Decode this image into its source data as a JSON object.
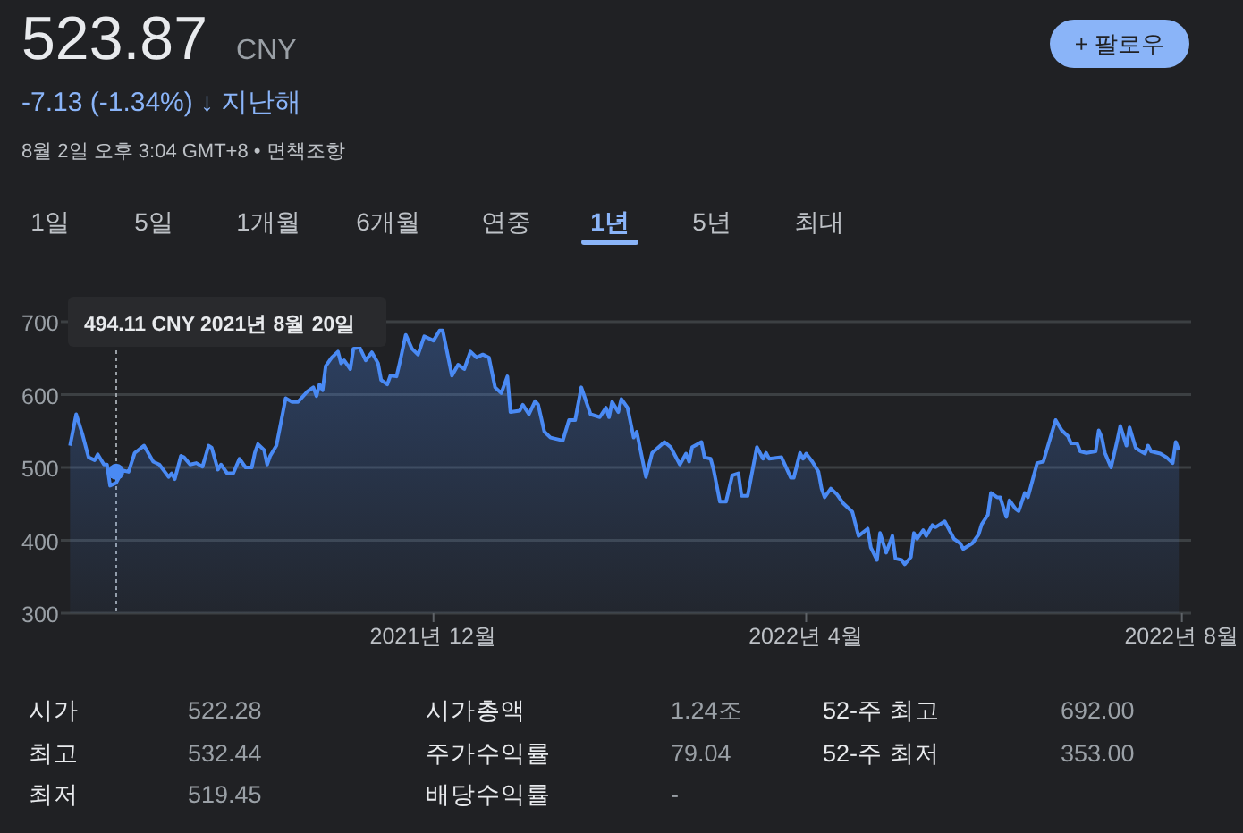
{
  "chart_data": {
    "type": "area",
    "title": "523.87",
    "subtitle": "CNY",
    "x": [
      "2021-08-05",
      "2021-08-07",
      "2021-08-09",
      "2021-08-11",
      "2021-08-13",
      "2021-08-14",
      "2021-08-16",
      "2021-08-17",
      "2021-08-18",
      "2021-08-20",
      "2021-08-22",
      "2021-08-24",
      "2021-08-26",
      "2021-08-29",
      "2021-09-01",
      "2021-09-03",
      "2021-09-06",
      "2021-09-07",
      "2021-09-08",
      "2021-09-10",
      "2021-09-11",
      "2021-09-13",
      "2021-09-15",
      "2021-09-17",
      "2021-09-19",
      "2021-09-20",
      "2021-09-22",
      "2021-09-23",
      "2021-09-25",
      "2021-09-27",
      "2021-09-29",
      "2021-10-01",
      "2021-10-03",
      "2021-10-04",
      "2021-10-05",
      "2021-10-07",
      "2021-10-08",
      "2021-10-09",
      "2021-10-11",
      "2021-10-14",
      "2021-10-16",
      "2021-10-18",
      "2021-10-21",
      "2021-10-23",
      "2021-10-24",
      "2021-10-25",
      "2021-10-26",
      "2021-10-27",
      "2021-10-29",
      "2021-10-31",
      "2021-11-01",
      "2021-11-02",
      "2021-11-04",
      "2021-11-05",
      "2021-11-07",
      "2021-11-09",
      "2021-11-11",
      "2021-11-13",
      "2021-11-14",
      "2021-11-16",
      "2021-11-17",
      "2021-11-19",
      "2021-11-20",
      "2021-11-22",
      "2021-11-24",
      "2021-11-26",
      "2021-11-28",
      "2021-12-01",
      "2021-12-03",
      "2021-12-04",
      "2021-12-07",
      "2021-12-09",
      "2021-12-11",
      "2021-12-13",
      "2021-12-15",
      "2021-12-17",
      "2021-12-19",
      "2021-12-21",
      "2021-12-23",
      "2021-12-25",
      "2021-12-26",
      "2021-12-29",
      "2021-12-30",
      "2022-01-01",
      "2022-01-03",
      "2022-01-04",
      "2022-01-06",
      "2022-01-08",
      "2022-01-12",
      "2022-01-14",
      "2022-01-16",
      "2022-01-18",
      "2022-01-21",
      "2022-01-24",
      "2022-01-26",
      "2022-01-27",
      "2022-01-28",
      "2022-01-30",
      "2022-01-31",
      "2022-02-02",
      "2022-02-04",
      "2022-02-05",
      "2022-02-08",
      "2022-02-10",
      "2022-02-14",
      "2022-02-16",
      "2022-02-19",
      "2022-02-21",
      "2022-02-22",
      "2022-02-23",
      "2022-02-26",
      "2022-02-27",
      "2022-03-01",
      "2022-03-02",
      "2022-03-04",
      "2022-03-06",
      "2022-03-08",
      "2022-03-10",
      "2022-03-11",
      "2022-03-13",
      "2022-03-16",
      "2022-03-18",
      "2022-03-19",
      "2022-03-20",
      "2022-03-24",
      "2022-03-27",
      "2022-03-28",
      "2022-03-30",
      "2022-03-31",
      "2022-04-01",
      "2022-04-03",
      "2022-04-05",
      "2022-04-06",
      "2022-04-07",
      "2022-04-09",
      "2022-04-11",
      "2022-04-13",
      "2022-04-16",
      "2022-04-18",
      "2022-04-21",
      "2022-04-22",
      "2022-04-24",
      "2022-04-25",
      "2022-04-27",
      "2022-04-29",
      "2022-04-30",
      "2022-05-02",
      "2022-05-03",
      "2022-05-05",
      "2022-05-06",
      "2022-05-07",
      "2022-05-09",
      "2022-05-10",
      "2022-05-12",
      "2022-05-13",
      "2022-05-16",
      "2022-05-19",
      "2022-05-21",
      "2022-05-22",
      "2022-05-25",
      "2022-05-27",
      "2022-05-28",
      "2022-05-30",
      "2022-05-31",
      "2022-06-02",
      "2022-06-03",
      "2022-06-05",
      "2022-06-06",
      "2022-06-08",
      "2022-06-09",
      "2022-06-11",
      "2022-06-12",
      "2022-06-15",
      "2022-06-17",
      "2022-06-21",
      "2022-06-23",
      "2022-06-25",
      "2022-06-26",
      "2022-06-28",
      "2022-06-29",
      "2022-07-01",
      "2022-07-04",
      "2022-07-05",
      "2022-07-06",
      "2022-07-07",
      "2022-07-09",
      "2022-07-11",
      "2022-07-12",
      "2022-07-14",
      "2022-07-15",
      "2022-07-17",
      "2022-07-18",
      "2022-07-20",
      "2022-07-21",
      "2022-07-22",
      "2022-07-25",
      "2022-07-27",
      "2022-07-29",
      "2022-07-30",
      "2022-07-31"
    ],
    "series": [
      {
        "color": "#4a8af4",
        "values": [
          530,
          573,
          546,
          514,
          510,
          518,
          504,
          504,
          475,
          479,
          496,
          494,
          520,
          530,
          508,
          504,
          487,
          492,
          484,
          516,
          514,
          504,
          506,
          501,
          530,
          527,
          497,
          504,
          492,
          492,
          512,
          500,
          500,
          520,
          532,
          524,
          504,
          516,
          530,
          595,
          590,
          590,
          604,
          610,
          598,
          614,
          606,
          639,
          651,
          659,
          643,
          647,
          635,
          663,
          665,
          647,
          658,
          643,
          620,
          614,
          626,
          625,
          643,
          682,
          663,
          655,
          680,
          674,
          688,
          688,
          626,
          641,
          635,
          659,
          651,
          655,
          651,
          610,
          602,
          625,
          576,
          578,
          586,
          573,
          591,
          586,
          549,
          541,
          537,
          565,
          565,
          610,
          573,
          569,
          582,
          569,
          590,
          576,
          594,
          582,
          541,
          549,
          487,
          520,
          535,
          528,
          504,
          519,
          508,
          528,
          535,
          514,
          512,
          496,
          453,
          453,
          489,
          492,
          461,
          461,
          528,
          512,
          520,
          512,
          514,
          486,
          486,
          520,
          512,
          519,
          508,
          494,
          471,
          459,
          471,
          463,
          451,
          439,
          406,
          416,
          390,
          373,
          410,
          383,
          406,
          375,
          373,
          367,
          377,
          410,
          402,
          414,
          406,
          421,
          418,
          426,
          402,
          396,
          388,
          396,
          408,
          422,
          435,
          465,
          459,
          459,
          432,
          455,
          443,
          440,
          465,
          459,
          506,
          508,
          565,
          551,
          543,
          533,
          533,
          522,
          520,
          522,
          551,
          541,
          520,
          500,
          537,
          557,
          530,
          555,
          527,
          524,
          519,
          530,
          522,
          519,
          514,
          506,
          535,
          524
        ]
      },
      {
        "type": "scatter",
        "marker": "circle",
        "color": "#4a8af4",
        "x": [
          "2021-08-20"
        ],
        "values": [
          494.11
        ]
      }
    ],
    "xlim": [
      "2021-08-02",
      "2022-08-04"
    ],
    "xticks": [
      {
        "value": "2021-12-01",
        "label": "2021년 12월"
      },
      {
        "value": "2022-04-01",
        "label": "2022년 4월"
      },
      {
        "value": "2022-08-01",
        "label": "2022년 8월"
      }
    ],
    "ylim": [
      300,
      700
    ],
    "yticks": [
      300,
      400,
      500,
      600,
      700
    ],
    "grid": "y",
    "ref_lines": [
      {
        "axis": "x",
        "value": "2021-08-20",
        "color": "#9aa0a6",
        "line_style": "dotted"
      }
    ],
    "annotations": [
      "-7.13 (-1.34%) ↓ 지난해",
      "8월 2일 오후 3:04 GMT+8 • 면책조항",
      "+ 팔로우",
      "1일",
      "5일",
      "1개월",
      "6개월",
      "연중",
      "1년",
      "5년",
      "최대",
      "시가",
      "522.28",
      "시가총액",
      "1.24조",
      "52-주 최고",
      "692.00",
      "최고",
      "532.44",
      "주가수익률",
      "79.04",
      "52-주 최저",
      "353.00",
      "최저",
      "519.45",
      "배당수익률",
      "-",
      "494.11 CNY  2021년 8월 20일"
    ]
  }
}
